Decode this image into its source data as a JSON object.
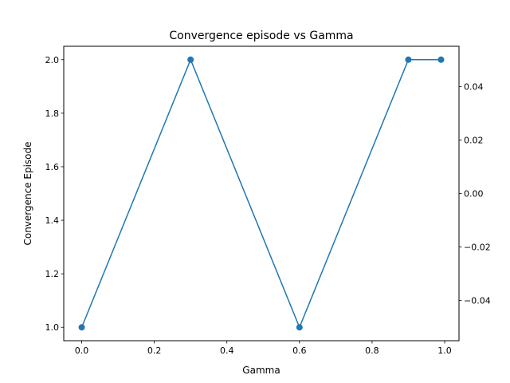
{
  "chart_data": {
    "type": "line",
    "title": "Convergence episode vs Gamma",
    "xlabel": "Gamma",
    "ylabel": "Convergence Episode",
    "x": [
      0.0,
      0.3,
      0.6,
      0.9,
      0.99
    ],
    "series": [
      {
        "values": [
          1,
          2,
          1,
          2,
          2
        ],
        "color": "#1f77b4",
        "marker": "circle"
      }
    ],
    "xlim": [
      -0.0495,
      1.0395
    ],
    "ylim": [
      0.95,
      2.05
    ],
    "y2lim": [
      -0.055,
      0.055
    ],
    "xticks": [
      0.0,
      0.2,
      0.4,
      0.6,
      0.8,
      1.0
    ],
    "xtick_labels": [
      "0.0",
      "0.2",
      "0.4",
      "0.6",
      "0.8",
      "1.0"
    ],
    "yticks": [
      1.0,
      1.2,
      1.4,
      1.6,
      1.8,
      2.0
    ],
    "ytick_labels": [
      "1.0",
      "1.2",
      "1.4",
      "1.6",
      "1.8",
      "2.0"
    ],
    "y2ticks": [
      -0.04,
      -0.02,
      0.0,
      0.02,
      0.04
    ],
    "y2tick_labels": [
      "−0.04",
      "−0.02",
      "0.00",
      "0.02",
      "0.04"
    ],
    "grid": false,
    "legend": "none"
  }
}
